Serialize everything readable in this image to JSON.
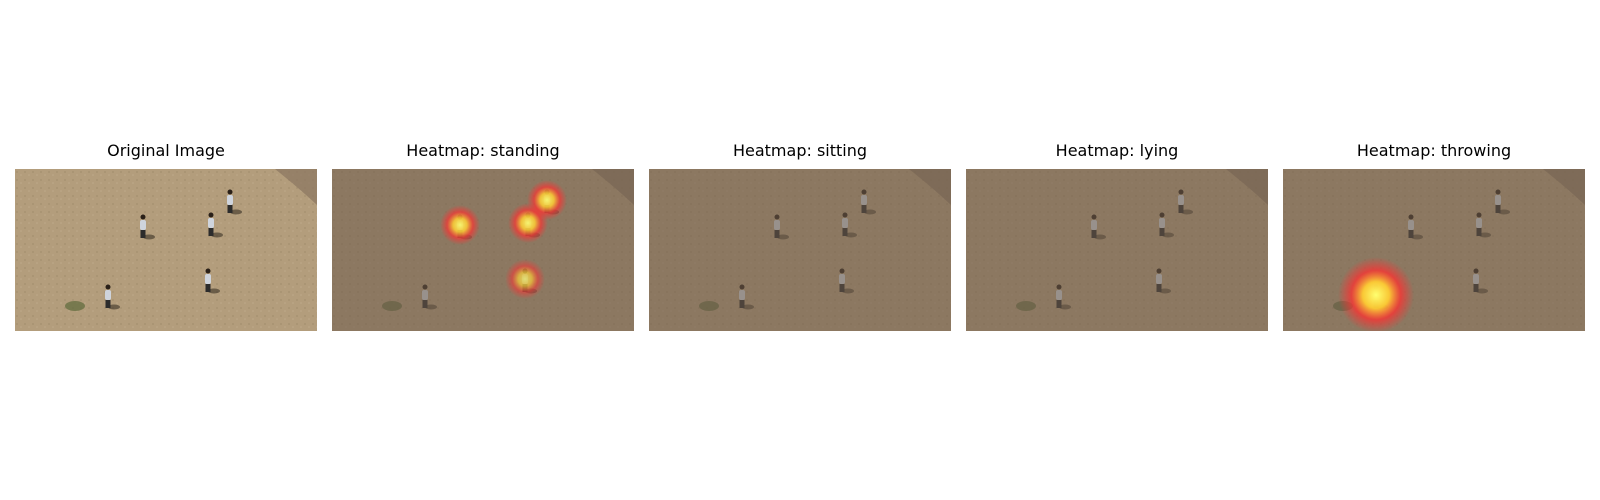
{
  "panels": [
    {
      "title": "Original Image",
      "kind": "original",
      "hotspots": []
    },
    {
      "title": "Heatmap: standing",
      "kind": "heatmap",
      "hotspots": [
        {
          "person": 1,
          "intensity": 0.9
        },
        {
          "person": 2,
          "intensity": 0.9
        },
        {
          "person": 3,
          "intensity": 0.9
        },
        {
          "person": 4,
          "intensity": 0.7
        }
      ]
    },
    {
      "title": "Heatmap: sitting",
      "kind": "heatmap",
      "hotspots": []
    },
    {
      "title": "Heatmap: lying",
      "kind": "heatmap",
      "hotspots": []
    },
    {
      "title": "Heatmap: throwing",
      "kind": "heatmap",
      "hotspots": [
        {
          "person": 5,
          "intensity": 1.0
        }
      ]
    }
  ],
  "colors": {
    "ground": "#b39d7c",
    "ground_dark": "#6b5a4a",
    "hot": "#ffff70",
    "warm": "#ff3030"
  }
}
